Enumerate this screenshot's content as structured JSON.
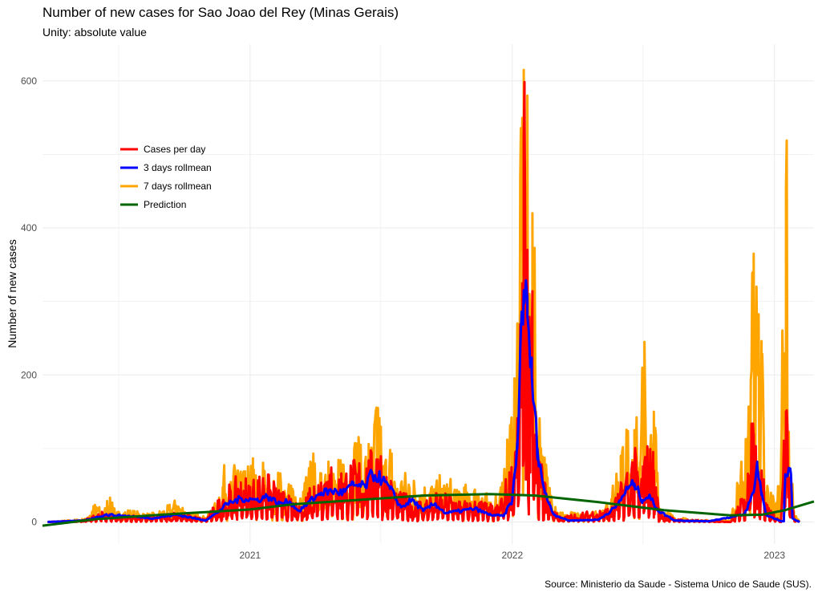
{
  "title": "Number of new cases for Sao Joao del Rey (Minas Gerais)",
  "subtitle": "Unity: absolute value",
  "caption": "Source: Ministerio da Saude -  Sistema Unico de Saude (SUS).",
  "chart_data": {
    "type": "line",
    "ylabel": "Number of new cases",
    "xlabel": "",
    "x_tick_labels": [
      "2021",
      "2022",
      "2023"
    ],
    "y_tick_labels": [
      "0",
      "200",
      "400",
      "600"
    ],
    "x_range": [
      "2020-03-18",
      "2023-02-25"
    ],
    "ylim": [
      -30,
      650
    ],
    "grid": true,
    "legend_position": "left-inside",
    "legend": [
      "Cases per day",
      "3 days rollmean",
      "7 days rollmean",
      "Prediction"
    ],
    "colors": {
      "cases_per_day": "#ff0000",
      "rollmean_3": "#0000ff",
      "rollmean_7": "#ffa500",
      "prediction": "#006400",
      "grid": "#ebebeb"
    },
    "series": [
      {
        "name": "7 days rollmean",
        "key": "rollmean_7",
        "points": [
          [
            "2020-03-25",
            0
          ],
          [
            "2020-05-15",
            3
          ],
          [
            "2020-06-01",
            20
          ],
          [
            "2020-06-10",
            8
          ],
          [
            "2020-06-20",
            33
          ],
          [
            "2020-06-30",
            10
          ],
          [
            "2020-07-15",
            12
          ],
          [
            "2020-08-15",
            8
          ],
          [
            "2020-09-01",
            12
          ],
          [
            "2020-09-20",
            22
          ],
          [
            "2020-10-10",
            10
          ],
          [
            "2020-10-31",
            5
          ],
          [
            "2020-11-15",
            20
          ],
          [
            "2020-11-25",
            55
          ],
          [
            "2020-12-05",
            40
          ],
          [
            "2020-12-15",
            70
          ],
          [
            "2020-12-25",
            48
          ],
          [
            "2021-01-05",
            62
          ],
          [
            "2021-01-15",
            38
          ],
          [
            "2021-01-20",
            68
          ],
          [
            "2021-01-30",
            35
          ],
          [
            "2021-02-10",
            52
          ],
          [
            "2021-02-20",
            30
          ],
          [
            "2021-03-01",
            45
          ],
          [
            "2021-03-10",
            20
          ],
          [
            "2021-03-20",
            50
          ],
          [
            "2021-03-31",
            75
          ],
          [
            "2021-04-08",
            45
          ],
          [
            "2021-04-20",
            82
          ],
          [
            "2021-04-30",
            48
          ],
          [
            "2021-05-10",
            78
          ],
          [
            "2021-05-20",
            55
          ],
          [
            "2021-05-30",
            95
          ],
          [
            "2021-06-08",
            55
          ],
          [
            "2021-06-15",
            106
          ],
          [
            "2021-06-20",
            70
          ],
          [
            "2021-06-28",
            155
          ],
          [
            "2021-07-05",
            60
          ],
          [
            "2021-07-15",
            80
          ],
          [
            "2021-07-25",
            45
          ],
          [
            "2021-08-10",
            50
          ],
          [
            "2021-08-25",
            35
          ],
          [
            "2021-09-10",
            40
          ],
          [
            "2021-09-25",
            45
          ],
          [
            "2021-10-15",
            40
          ],
          [
            "2021-10-30",
            35
          ],
          [
            "2021-11-15",
            35
          ],
          [
            "2021-12-01",
            25
          ],
          [
            "2021-12-20",
            45
          ],
          [
            "2022-01-01",
            125
          ],
          [
            "2022-01-08",
            230
          ],
          [
            "2022-01-13",
            370
          ],
          [
            "2022-01-17",
            615
          ],
          [
            "2022-01-20",
            280
          ],
          [
            "2022-01-22",
            580
          ],
          [
            "2022-01-26",
            260
          ],
          [
            "2022-01-29",
            420
          ],
          [
            "2022-02-03",
            150
          ],
          [
            "2022-02-10",
            100
          ],
          [
            "2022-02-20",
            40
          ],
          [
            "2022-03-10",
            10
          ],
          [
            "2022-04-20",
            8
          ],
          [
            "2022-05-20",
            30
          ],
          [
            "2022-06-01",
            90
          ],
          [
            "2022-06-10",
            115
          ],
          [
            "2022-06-20",
            125
          ],
          [
            "2022-06-28",
            60
          ],
          [
            "2022-07-04",
            245
          ],
          [
            "2022-07-10",
            50
          ],
          [
            "2022-07-17",
            150
          ],
          [
            "2022-07-24",
            20
          ],
          [
            "2022-08-15",
            5
          ],
          [
            "2022-09-15",
            2
          ],
          [
            "2022-11-01",
            2
          ],
          [
            "2022-11-15",
            60
          ],
          [
            "2022-11-25",
            90
          ],
          [
            "2022-12-03",
            365
          ],
          [
            "2022-12-08",
            200
          ],
          [
            "2022-12-14",
            230
          ],
          [
            "2022-12-20",
            40
          ],
          [
            "2023-01-05",
            20
          ],
          [
            "2023-01-14",
            228
          ],
          [
            "2023-01-17",
            455
          ],
          [
            "2023-01-21",
            120
          ],
          [
            "2023-01-28",
            10
          ],
          [
            "2023-02-05",
            0
          ]
        ]
      },
      {
        "name": "Cases per day",
        "key": "cases_per_day",
        "points": [
          [
            "2020-03-25",
            0
          ],
          [
            "2020-05-15",
            2
          ],
          [
            "2020-06-10",
            10
          ],
          [
            "2020-07-01",
            7
          ],
          [
            "2020-08-15",
            5
          ],
          [
            "2020-09-20",
            10
          ],
          [
            "2020-10-31",
            3
          ],
          [
            "2020-11-25",
            30
          ],
          [
            "2020-12-15",
            45
          ],
          [
            "2021-01-05",
            42
          ],
          [
            "2021-01-20",
            50
          ],
          [
            "2021-02-10",
            35
          ],
          [
            "2021-03-10",
            15
          ],
          [
            "2021-03-31",
            48
          ],
          [
            "2021-04-20",
            55
          ],
          [
            "2021-05-10",
            52
          ],
          [
            "2021-05-30",
            62
          ],
          [
            "2021-06-15",
            65
          ],
          [
            "2021-06-28",
            85
          ],
          [
            "2021-07-10",
            50
          ],
          [
            "2021-07-25",
            30
          ],
          [
            "2021-08-25",
            22
          ],
          [
            "2021-09-25",
            30
          ],
          [
            "2021-10-30",
            20
          ],
          [
            "2021-11-15",
            22
          ],
          [
            "2021-12-10",
            15
          ],
          [
            "2022-01-01",
            60
          ],
          [
            "2022-01-08",
            130
          ],
          [
            "2022-01-13",
            200
          ],
          [
            "2022-01-17",
            525
          ],
          [
            "2022-01-20",
            200
          ],
          [
            "2022-01-22",
            370
          ],
          [
            "2022-01-26",
            160
          ],
          [
            "2022-01-29",
            220
          ],
          [
            "2022-02-03",
            90
          ],
          [
            "2022-02-10",
            60
          ],
          [
            "2022-02-20",
            25
          ],
          [
            "2022-03-10",
            5
          ],
          [
            "2022-05-20",
            15
          ],
          [
            "2022-06-10",
            55
          ],
          [
            "2022-06-20",
            75
          ],
          [
            "2022-06-28",
            35
          ],
          [
            "2022-07-04",
            80
          ],
          [
            "2022-07-17",
            70
          ],
          [
            "2022-07-24",
            12
          ],
          [
            "2022-08-15",
            3
          ],
          [
            "2022-11-01",
            0
          ],
          [
            "2022-11-20",
            30
          ],
          [
            "2022-12-03",
            120
          ],
          [
            "2022-12-08",
            60
          ],
          [
            "2022-12-14",
            70
          ],
          [
            "2022-12-20",
            20
          ],
          [
            "2023-01-10",
            0
          ],
          [
            "2023-01-17",
            150
          ],
          [
            "2023-01-21",
            60
          ],
          [
            "2023-01-28",
            5
          ],
          [
            "2023-02-05",
            0
          ]
        ]
      },
      {
        "name": "3 days rollmean",
        "key": "rollmean_3",
        "points": [
          [
            "2020-03-25",
            0
          ],
          [
            "2020-05-15",
            2
          ],
          [
            "2020-06-15",
            10
          ],
          [
            "2020-07-15",
            8
          ],
          [
            "2020-08-20",
            5
          ],
          [
            "2020-09-20",
            10
          ],
          [
            "2020-10-31",
            2
          ],
          [
            "2020-11-15",
            12
          ],
          [
            "2020-12-01",
            25
          ],
          [
            "2020-12-20",
            32
          ],
          [
            "2021-01-10",
            30
          ],
          [
            "2021-01-25",
            35
          ],
          [
            "2021-02-10",
            25
          ],
          [
            "2021-02-25",
            28
          ],
          [
            "2021-03-10",
            15
          ],
          [
            "2021-03-25",
            28
          ],
          [
            "2021-04-10",
            40
          ],
          [
            "2021-04-25",
            42
          ],
          [
            "2021-05-10",
            40
          ],
          [
            "2021-05-25",
            50
          ],
          [
            "2021-06-10",
            48
          ],
          [
            "2021-06-20",
            65
          ],
          [
            "2021-07-01",
            60
          ],
          [
            "2021-07-15",
            45
          ],
          [
            "2021-07-30",
            20
          ],
          [
            "2021-08-15",
            30
          ],
          [
            "2021-08-30",
            15
          ],
          [
            "2021-09-15",
            25
          ],
          [
            "2021-09-30",
            12
          ],
          [
            "2021-10-20",
            15
          ],
          [
            "2021-11-10",
            18
          ],
          [
            "2021-11-30",
            10
          ],
          [
            "2021-12-20",
            8
          ],
          [
            "2022-01-01",
            30
          ],
          [
            "2022-01-08",
            100
          ],
          [
            "2022-01-13",
            260
          ],
          [
            "2022-01-17",
            315
          ],
          [
            "2022-01-22",
            280
          ],
          [
            "2022-01-28",
            200
          ],
          [
            "2022-02-05",
            100
          ],
          [
            "2022-02-15",
            40
          ],
          [
            "2022-02-28",
            10
          ],
          [
            "2022-03-20",
            2
          ],
          [
            "2022-05-01",
            3
          ],
          [
            "2022-05-25",
            20
          ],
          [
            "2022-06-10",
            45
          ],
          [
            "2022-06-20",
            52
          ],
          [
            "2022-07-01",
            30
          ],
          [
            "2022-07-10",
            35
          ],
          [
            "2022-07-24",
            15
          ],
          [
            "2022-08-15",
            2
          ],
          [
            "2022-10-01",
            1
          ],
          [
            "2022-11-20",
            10
          ],
          [
            "2022-12-03",
            40
          ],
          [
            "2022-12-08",
            78
          ],
          [
            "2022-12-14",
            40
          ],
          [
            "2022-12-20",
            10
          ],
          [
            "2023-01-10",
            1
          ],
          [
            "2023-01-14",
            1
          ],
          [
            "2023-01-16",
            65
          ],
          [
            "2023-01-24",
            65
          ],
          [
            "2023-01-26",
            5
          ],
          [
            "2023-02-05",
            0
          ]
        ]
      },
      {
        "name": "Prediction",
        "key": "prediction",
        "points": [
          [
            "2020-03-18",
            -5
          ],
          [
            "2020-06-01",
            4
          ],
          [
            "2020-09-01",
            10
          ],
          [
            "2021-01-01",
            17
          ],
          [
            "2021-03-01",
            24
          ],
          [
            "2021-06-01",
            30
          ],
          [
            "2021-09-01",
            36
          ],
          [
            "2021-12-01",
            38
          ],
          [
            "2022-02-01",
            36
          ],
          [
            "2022-05-01",
            27
          ],
          [
            "2022-08-01",
            16
          ],
          [
            "2022-11-01",
            9
          ],
          [
            "2022-12-15",
            10
          ],
          [
            "2023-01-15",
            16
          ],
          [
            "2023-02-25",
            28
          ]
        ]
      }
    ]
  }
}
